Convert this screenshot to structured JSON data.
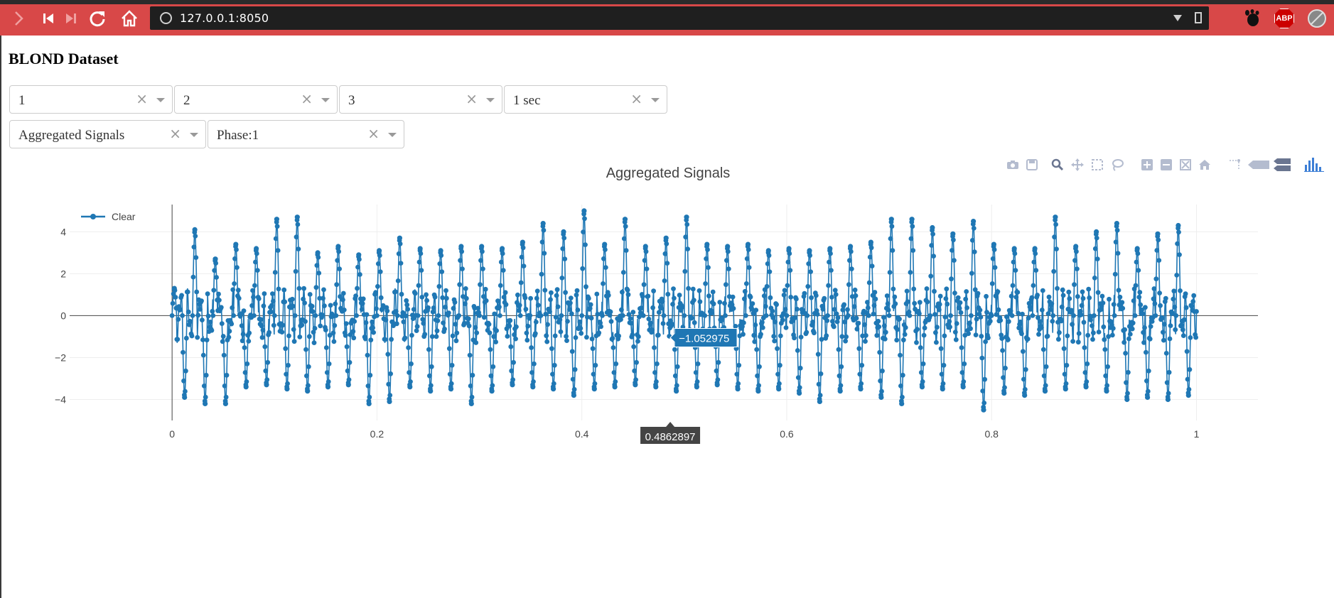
{
  "browser": {
    "url": "127.0.0.1:8050",
    "extension_label": "ABP",
    "colors": {
      "toolbar": "#d84848",
      "urlbar": "#1f1f1f"
    }
  },
  "page": {
    "title": "BLOND Dataset"
  },
  "filters": {
    "row1": [
      {
        "value": "1"
      },
      {
        "value": "2"
      },
      {
        "value": "3"
      },
      {
        "value": "1 sec"
      }
    ],
    "row2": [
      {
        "value": "Aggregated Signals"
      },
      {
        "value": "Phase:1"
      }
    ]
  },
  "modebar": {
    "icons": [
      "camera-icon",
      "save-icon",
      "zoom-icon",
      "pan-icon",
      "box-select-icon",
      "lasso-select-icon",
      "zoom-in-icon",
      "zoom-out-icon",
      "autoscale-icon",
      "reset-axes-icon",
      "spike-lines-icon",
      "hover-closest-icon",
      "hover-compare-icon",
      "plotly-logo-icon"
    ]
  },
  "chart_data": {
    "type": "line",
    "title": "Aggregated Signals",
    "xlabel": "",
    "ylabel": "",
    "xlim": [
      -0.1,
      1.06
    ],
    "ylim": [
      -5,
      5.3
    ],
    "x_ticks": [
      "0",
      "0.2",
      "0.4",
      "0.6",
      "0.8",
      "1"
    ],
    "x_tick_values": [
      0,
      0.2,
      0.4,
      0.6,
      0.8,
      1
    ],
    "y_ticks": [
      "4",
      "2",
      "0",
      "−2",
      "−4"
    ],
    "y_tick_values": [
      4,
      2,
      0,
      -2,
      -4
    ],
    "grid": true,
    "legend_position": "top-left",
    "mode": "lines+markers",
    "series": [
      {
        "name": "Clear",
        "color": "#1f77b4",
        "x_range": [
          0,
          1
        ],
        "cycles": 50,
        "cycle_peaks": [
          1.3,
          4.1,
          2.7,
          3.4,
          3.2,
          4.6,
          4.7,
          3.0,
          3.3,
          2.9,
          3.1,
          3.7,
          3.2,
          3.1,
          3.3,
          3.3,
          3.2,
          3.5,
          4.4,
          4.0,
          5.0,
          3.4,
          4.6,
          3.3,
          3.7,
          4.7,
          3.4,
          3.3,
          3.4,
          3.1,
          3.2,
          3.1,
          3.2,
          3.3,
          3.5,
          4.6,
          4.6,
          4.2,
          3.9,
          4.5,
          3.4,
          3.2,
          3.2,
          4.7,
          3.3,
          4.0,
          4.4,
          3.2,
          3.9,
          4.3
        ],
        "cycle_troughs": [
          -3.9,
          -4.2,
          -4.2,
          -3.4,
          -3.3,
          -3.5,
          -3.6,
          -3.4,
          -3.3,
          -4.2,
          -4.1,
          -3.4,
          -3.6,
          -3.5,
          -4.2,
          -3.6,
          -3.3,
          -3.4,
          -3.5,
          -3.8,
          -3.5,
          -3.4,
          -3.3,
          -3.4,
          -3.6,
          -3.4,
          -3.3,
          -3.5,
          -3.6,
          -3.5,
          -3.7,
          -4.1,
          -3.6,
          -3.5,
          -3.9,
          -4.2,
          -3.4,
          -3.5,
          -3.4,
          -4.5,
          -3.7,
          -3.8,
          -3.6,
          -3.5,
          -3.4,
          -3.6,
          -4.0,
          -3.9,
          -4.0,
          -3.8
        ]
      }
    ],
    "hover": {
      "y_label": "−1.052975",
      "x_label": "0.4862897",
      "x": 0.4862897,
      "y": -1.052975
    }
  }
}
